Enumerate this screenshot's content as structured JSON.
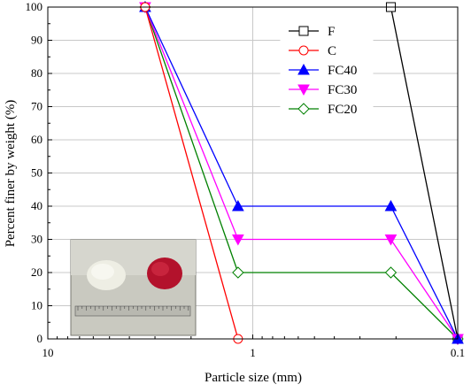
{
  "chart_data": {
    "type": "line",
    "xlabel": "Particle size (mm)",
    "ylabel": "Percent finer by weight (%)",
    "x_scale": "log",
    "x_reversed": true,
    "xlim": [
      10,
      0.1
    ],
    "ylim": [
      0,
      100
    ],
    "x_ticks": [
      10,
      1,
      0.1
    ],
    "x_tick_labels": [
      "10",
      "1",
      "0.1"
    ],
    "y_ticks": [
      0,
      10,
      20,
      30,
      40,
      50,
      60,
      70,
      80,
      90,
      100
    ],
    "y_tick_labels": [
      "0",
      "10",
      "20",
      "30",
      "40",
      "50",
      "60",
      "70",
      "80",
      "90",
      "100"
    ],
    "grid": true,
    "legend_position": "top-right",
    "series": [
      {
        "name": "F",
        "color": "#000000",
        "marker": "square-open",
        "x": [
          0.212,
          0.1
        ],
        "y": [
          100,
          0
        ]
      },
      {
        "name": "C",
        "color": "#ff0000",
        "marker": "circle-open",
        "x": [
          3.35,
          1.18
        ],
        "y": [
          100,
          0
        ]
      },
      {
        "name": "FC40",
        "color": "#0000ff",
        "marker": "triangle-up-filled",
        "x": [
          3.35,
          1.18,
          0.212,
          0.1
        ],
        "y": [
          100,
          40,
          40,
          0
        ]
      },
      {
        "name": "FC30",
        "color": "#ff00ff",
        "marker": "triangle-down-filled",
        "x": [
          3.35,
          1.18,
          0.212,
          0.1
        ],
        "y": [
          100,
          30,
          30,
          0
        ]
      },
      {
        "name": "FC20",
        "color": "#008000",
        "marker": "diamond-open",
        "x": [
          3.35,
          1.18,
          0.212,
          0.1
        ],
        "y": [
          100,
          20,
          20,
          0
        ]
      }
    ]
  }
}
